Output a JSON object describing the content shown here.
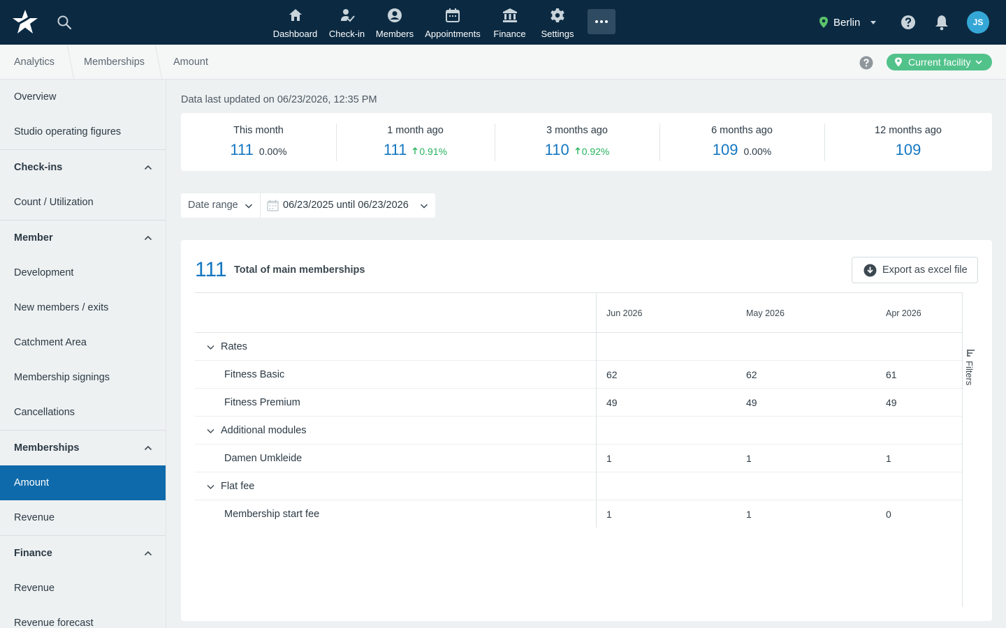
{
  "topbar": {
    "nav": [
      {
        "label": "Dashboard",
        "icon": "home-icon"
      },
      {
        "label": "Check-in",
        "icon": "checkin-icon"
      },
      {
        "label": "Members",
        "icon": "member-icon"
      },
      {
        "label": "Appointments",
        "icon": "calendar-icon"
      },
      {
        "label": "Finance",
        "icon": "bank-icon"
      },
      {
        "label": "Settings",
        "icon": "gear-icon"
      }
    ],
    "location": "Berlin",
    "avatar_initials": "JS"
  },
  "breadcrumb": [
    "Analytics",
    "Memberships",
    "Amount"
  ],
  "facility_button": "Current facility",
  "sidebar": {
    "overview": "Overview",
    "studio": "Studio operating figures",
    "checkins_header": "Check-ins",
    "count_util": "Count / Utilization",
    "member_header": "Member",
    "development": "Development",
    "new_members": "New members / exits",
    "catchment": "Catchment Area",
    "signings": "Membership signings",
    "cancellations": "Cancellations",
    "memberships_header": "Memberships",
    "amount": "Amount",
    "revenue_m": "Revenue",
    "finance_header": "Finance",
    "revenue_f": "Revenue",
    "forecast": "Revenue forecast"
  },
  "updated_text": "Data last updated on 06/23/2026, 12:35 PM",
  "stats": [
    {
      "label": "This month",
      "value": "111",
      "pct": "0.00%",
      "trend": "none"
    },
    {
      "label": "1 month ago",
      "value": "111",
      "pct": "0.91%",
      "trend": "up"
    },
    {
      "label": "3 months ago",
      "value": "110",
      "pct": "0.92%",
      "trend": "up"
    },
    {
      "label": "6 months ago",
      "value": "109",
      "pct": "0.00%",
      "trend": "none"
    },
    {
      "label": "12 months ago",
      "value": "109",
      "pct": "",
      "trend": "none"
    }
  ],
  "date_range": {
    "label": "Date range",
    "value": "06/23/2025 until 06/23/2026"
  },
  "card": {
    "total": "111",
    "total_label": "Total of main memberships",
    "export_label": "Export as excel file",
    "filters_label": "Filters",
    "columns": [
      "Jun 2026",
      "May 2026",
      "Apr 2026"
    ],
    "groups": [
      {
        "name": "Rates",
        "rows": [
          {
            "name": "Fitness Basic",
            "values": [
              "62",
              "62",
              "61"
            ]
          },
          {
            "name": "Fitness Premium",
            "values": [
              "49",
              "49",
              "49"
            ]
          }
        ]
      },
      {
        "name": "Additional modules",
        "rows": [
          {
            "name": "Damen Umkleide",
            "values": [
              "1",
              "1",
              "1"
            ]
          }
        ]
      },
      {
        "name": "Flat fee",
        "rows": [
          {
            "name": "Membership start fee",
            "values": [
              "1",
              "1",
              "0"
            ]
          }
        ]
      }
    ]
  }
}
